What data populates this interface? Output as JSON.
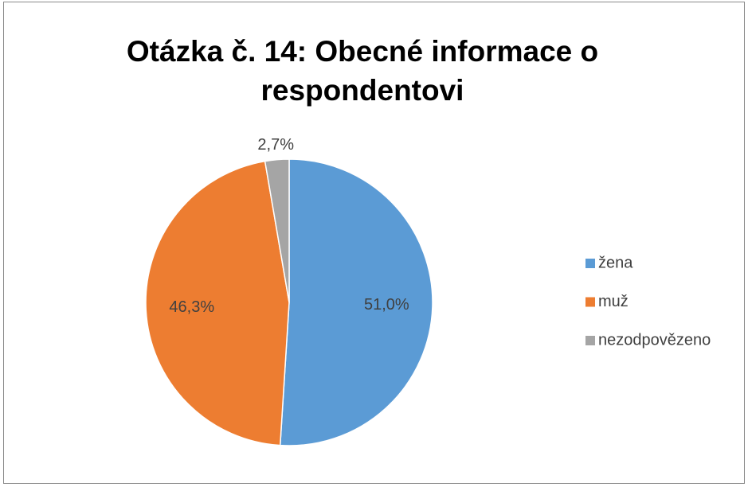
{
  "chart_data": {
    "type": "pie",
    "title": "Otázka č. 14: Obecné informace o respondentovi",
    "categories": [
      "žena",
      "muž",
      "nezodpovězeno"
    ],
    "values": [
      51.0,
      46.3,
      2.7
    ],
    "value_labels": [
      "51,0%",
      "46,3%",
      "2,7%"
    ],
    "colors": [
      "#5b9bd5",
      "#ed7d31",
      "#a5a5a5"
    ],
    "legend": "right"
  }
}
